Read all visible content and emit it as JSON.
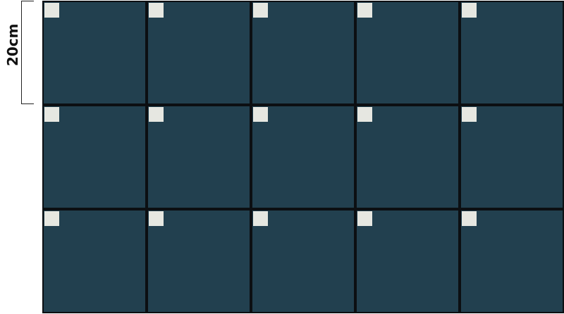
{
  "scale": {
    "label": "20cm"
  },
  "grid": {
    "rows": 3,
    "columns": 5,
    "tile_color": "#22404f",
    "marker_color": "#e6e7e1",
    "marker_position": "top-left"
  }
}
